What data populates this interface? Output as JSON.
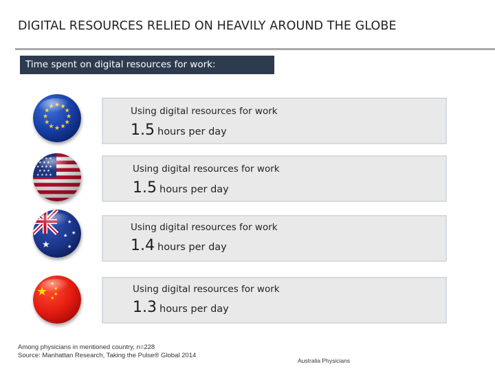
{
  "title": "DIGITAL RESOURCES RELIED ON HEAVILY AROUND THE GLOBE",
  "section_label": "Time spent on digital resources for work:",
  "rows": [
    {
      "flag_icon": "eu-flag-icon",
      "label": "Using digital resources for work",
      "value": "1.5",
      "unit": "hours per day"
    },
    {
      "flag_icon": "us-flag-icon",
      "label": "Using digital resources for work",
      "value": "1.5",
      "unit": "hours per day"
    },
    {
      "flag_icon": "australia-flag-icon",
      "label": "Using digital resources for work",
      "value": "1.4",
      "unit": "hours per day"
    },
    {
      "flag_icon": "china-flag-icon",
      "label": "Using digital resources for work",
      "value": "1.3",
      "unit": "hours per day"
    }
  ],
  "footnote": {
    "line1": "Among physicians in mentioned country, n=228",
    "line2": "Source: Manhattan Research, Taking the Pulse® Global 2014"
  },
  "footer_right": "Australia Physicians",
  "colors": {
    "section_label_bg": "#2e3b4f",
    "card_bg": "#e9e9e9",
    "card_border": "#d6dbe1",
    "divider": "#a9a9a9"
  }
}
